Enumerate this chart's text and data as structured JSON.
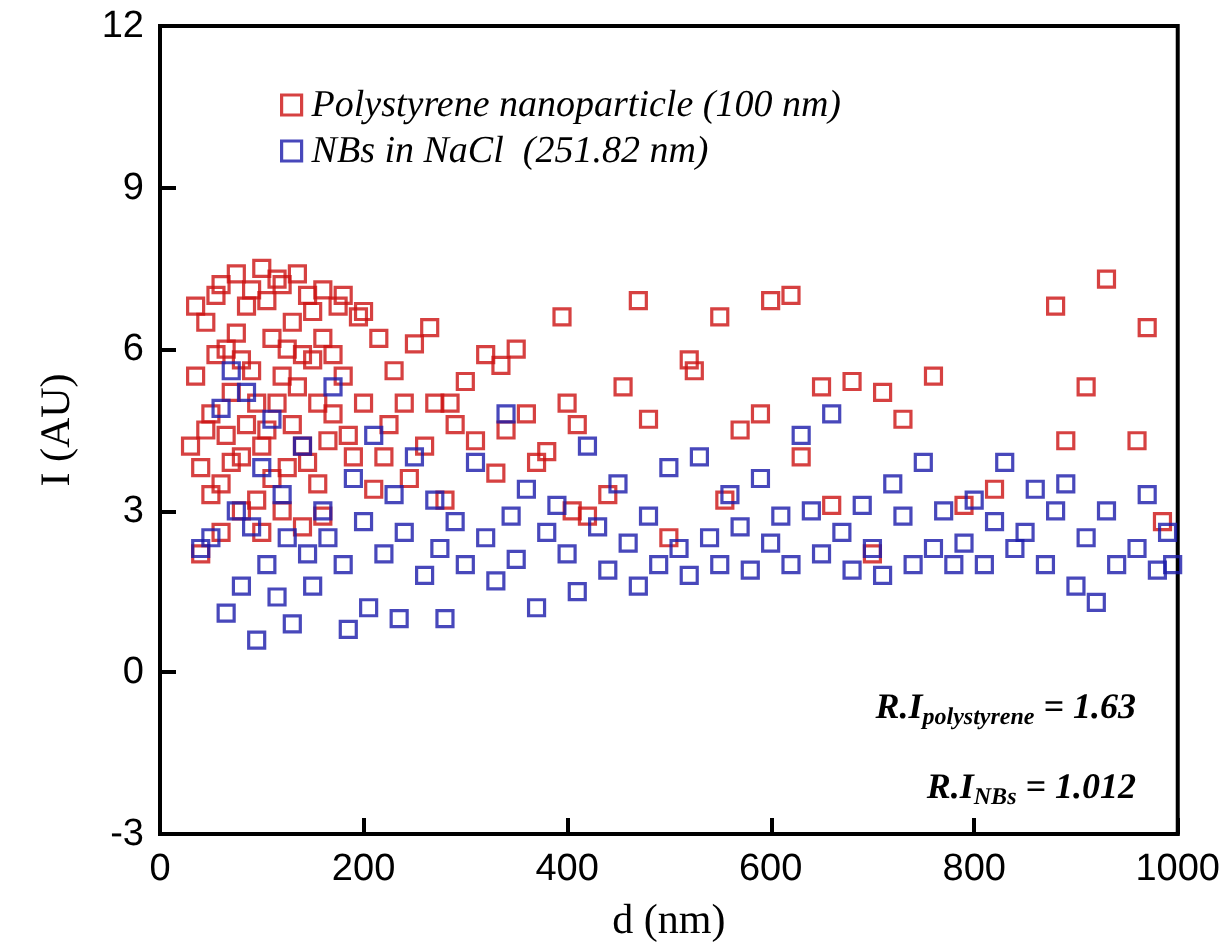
{
  "chart_data": {
    "type": "scatter",
    "xlabel": "d (nm)",
    "ylabel": "I (AU)",
    "xlim": [
      0,
      1000
    ],
    "xticks": [
      0,
      200,
      400,
      600,
      800,
      1000
    ],
    "ylim": [
      -3,
      12
    ],
    "yticks": [
      -3,
      0,
      3,
      6,
      9,
      12
    ],
    "grid": false,
    "legend": "top left",
    "marker": "square",
    "annotations": [
      "R.I$_{polystyrene}$ = 1.63",
      "R.I$_{NBs}$ = 1.012"
    ],
    "series": [
      {
        "name": "Polystyrene nanoparticle (100 nm)",
        "color": "#cc1111",
        "x": [
          30,
          35,
          40,
          45,
          50,
          55,
          60,
          65,
          70,
          75,
          80,
          85,
          90,
          95,
          100,
          105,
          110,
          115,
          120,
          125,
          130,
          135,
          140,
          145,
          150,
          155,
          160,
          170,
          175,
          180,
          190,
          195,
          200,
          210,
          215,
          225,
          230,
          245,
          250,
          260,
          270,
          280,
          290,
          300,
          310,
          330,
          335,
          350,
          360,
          370,
          380,
          395,
          400,
          405,
          410,
          420,
          440,
          470,
          455,
          480,
          500,
          520,
          525,
          550,
          555,
          570,
          590,
          600,
          620,
          630,
          650,
          660,
          680,
          700,
          710,
          730,
          760,
          790,
          820,
          880,
          890,
          910,
          930,
          960,
          970,
          985,
          40,
          60,
          80,
          35,
          45,
          55,
          60,
          70,
          75,
          85,
          90,
          95,
          100,
          105,
          110,
          115,
          120,
          125,
          130,
          135,
          140,
          145,
          150,
          155,
          160,
          165,
          170,
          180,
          185,
          50,
          65,
          80,
          100,
          120,
          140,
          160,
          200,
          220,
          240,
          265,
          285,
          320,
          340
        ],
        "values": [
          4.2,
          5.5,
          3.8,
          6.5,
          4.8,
          7.0,
          3.5,
          6.0,
          5.2,
          7.4,
          4.0,
          6.8,
          5.6,
          3.2,
          7.5,
          4.5,
          6.2,
          5.0,
          7.2,
          3.8,
          6.5,
          5.3,
          4.2,
          7.0,
          5.8,
          3.5,
          6.2,
          4.8,
          6.8,
          5.5,
          4.0,
          6.6,
          5.0,
          3.4,
          6.2,
          4.6,
          5.6,
          3.6,
          6.1,
          4.2,
          5.0,
          3.2,
          4.6,
          5.4,
          4.3,
          3.7,
          5.7,
          6.0,
          4.8,
          3.9,
          4.1,
          6.6,
          5.0,
          3.0,
          4.6,
          2.9,
          3.3,
          6.9,
          5.3,
          4.7,
          2.5,
          5.8,
          5.6,
          6.6,
          3.2,
          4.5,
          4.8,
          6.9,
          7.0,
          4.0,
          5.3,
          3.1,
          5.4,
          2.2,
          5.2,
          4.7,
          5.5,
          3.1,
          3.4,
          6.8,
          4.3,
          5.3,
          7.3,
          4.3,
          6.4,
          2.8,
          2.2,
          2.6,
          3.0,
          6.8,
          4.5,
          5.9,
          7.2,
          3.9,
          6.3,
          4.6,
          7.1,
          5.0,
          4.2,
          6.9,
          3.6,
          7.3,
          5.5,
          6.0,
          4.6,
          7.4,
          5.9,
          3.9,
          6.7,
          5.0,
          7.1,
          4.3,
          5.9,
          7.0,
          4.4,
          3.3,
          4.4,
          5.8,
          2.6,
          3.0,
          2.7,
          2.9,
          6.7,
          4.0,
          5.0,
          6.4,
          5.0,
          5.9,
          4.5
        ]
      },
      {
        "name": "NBs in NaCl  (251.82 nm)",
        "color": "#1a1aaa",
        "x": [
          40,
          50,
          60,
          65,
          70,
          75,
          80,
          85,
          90,
          95,
          100,
          105,
          110,
          115,
          120,
          125,
          130,
          140,
          145,
          150,
          160,
          165,
          170,
          180,
          185,
          190,
          200,
          205,
          210,
          220,
          230,
          235,
          240,
          250,
          260,
          270,
          275,
          280,
          290,
          300,
          310,
          320,
          330,
          340,
          345,
          350,
          360,
          370,
          380,
          390,
          400,
          410,
          420,
          430,
          440,
          450,
          460,
          470,
          480,
          490,
          500,
          510,
          520,
          530,
          540,
          550,
          560,
          570,
          580,
          590,
          600,
          610,
          620,
          630,
          640,
          650,
          660,
          670,
          680,
          690,
          700,
          710,
          720,
          730,
          740,
          750,
          760,
          770,
          780,
          790,
          800,
          810,
          820,
          830,
          840,
          850,
          860,
          870,
          880,
          890,
          900,
          910,
          920,
          930,
          940,
          960,
          970,
          980,
          990,
          995
        ],
        "values": [
          2.3,
          2.5,
          4.9,
          1.1,
          5.6,
          3.0,
          1.6,
          5.2,
          2.7,
          0.6,
          3.8,
          2.0,
          4.7,
          1.4,
          3.3,
          2.5,
          0.9,
          4.2,
          2.2,
          1.6,
          3.0,
          2.5,
          5.3,
          2.0,
          0.8,
          3.6,
          2.8,
          1.2,
          4.4,
          2.2,
          3.3,
          1.0,
          2.6,
          4.0,
          1.8,
          3.2,
          2.3,
          1.0,
          2.8,
          2.0,
          3.9,
          2.5,
          1.7,
          4.8,
          2.9,
          2.1,
          3.4,
          1.2,
          2.6,
          3.1,
          2.2,
          1.5,
          4.2,
          2.7,
          1.9,
          3.5,
          2.4,
          1.6,
          2.9,
          2.0,
          3.8,
          2.3,
          1.8,
          4.0,
          2.5,
          2.0,
          3.3,
          2.7,
          1.9,
          3.6,
          2.4,
          2.9,
          2.0,
          4.4,
          3.0,
          2.2,
          4.8,
          2.6,
          1.9,
          3.1,
          2.3,
          1.8,
          3.5,
          2.9,
          2.0,
          3.9,
          2.3,
          3.0,
          2.0,
          2.4,
          3.2,
          2.0,
          2.8,
          3.9,
          2.3,
          2.6,
          3.4,
          2.0,
          3.0,
          3.5,
          1.6,
          2.5,
          1.3,
          3.0,
          2.0,
          2.3,
          3.3,
          1.9,
          2.6,
          2.0
        ]
      }
    ]
  }
}
